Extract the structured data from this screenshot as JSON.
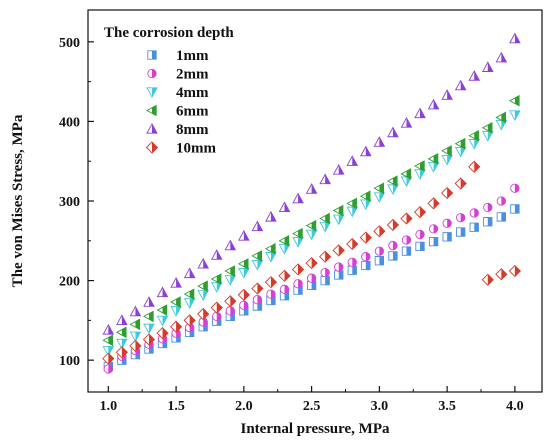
{
  "chart_data": {
    "type": "scatter",
    "xlabel": "Internal pressure, MPa",
    "ylabel": "The von Mises Stress, MPa",
    "xlim": [
      0.85,
      4.2
    ],
    "ylim": [
      60,
      540
    ],
    "x_ticks": [
      "1.0",
      "1.5",
      "2.0",
      "2.5",
      "3.0",
      "3.5",
      "4.0"
    ],
    "y_ticks": [
      "100",
      "200",
      "300",
      "400",
      "500"
    ],
    "legend": {
      "title": "The corrosion depth",
      "placement": "top-left"
    },
    "series": [
      {
        "name": "1mm",
        "marker": "square",
        "color": "#4a90e2",
        "x": [
          1.0,
          1.1,
          1.2,
          1.3,
          1.4,
          1.5,
          1.6,
          1.7,
          1.8,
          1.9,
          2.0,
          2.1,
          2.2,
          2.3,
          2.4,
          2.5,
          2.6,
          2.7,
          2.8,
          2.9,
          3.0,
          3.1,
          3.2,
          3.3,
          3.4,
          3.5,
          3.6,
          3.7,
          3.8,
          3.9,
          4.0
        ],
        "y": [
          92,
          100,
          107,
          114,
          121,
          128,
          135,
          142,
          149,
          155,
          162,
          168,
          175,
          181,
          188,
          194,
          200,
          207,
          213,
          219,
          225,
          231,
          237,
          243,
          249,
          255,
          261,
          267,
          274,
          280,
          290
        ]
      },
      {
        "name": "2mm",
        "marker": "circle",
        "color": "#d63fd6",
        "x": [
          1.0,
          1.1,
          1.2,
          1.3,
          1.4,
          1.5,
          1.6,
          1.7,
          1.8,
          1.9,
          2.0,
          2.1,
          2.2,
          2.3,
          2.4,
          2.5,
          2.6,
          2.7,
          2.8,
          2.9,
          3.0,
          3.1,
          3.2,
          3.3,
          3.4,
          3.5,
          3.6,
          3.7,
          3.8,
          3.9,
          4.0
        ],
        "y": [
          89,
          105,
          112,
          120,
          127,
          134,
          141,
          148,
          155,
          162,
          169,
          176,
          183,
          189,
          196,
          203,
          210,
          217,
          223,
          230,
          237,
          244,
          251,
          258,
          265,
          272,
          279,
          285,
          292,
          300,
          316
        ]
      },
      {
        "name": "4mm",
        "marker": "triangle-down",
        "color": "#3fc9e0",
        "x": [
          1.0,
          1.1,
          1.2,
          1.3,
          1.4,
          1.5,
          1.6,
          1.7,
          1.8,
          1.9,
          2.0,
          2.1,
          2.2,
          2.3,
          2.4,
          2.5,
          2.6,
          2.7,
          2.8,
          2.9,
          3.0,
          3.1,
          3.2,
          3.3,
          3.4,
          3.5,
          3.6,
          3.7,
          3.8,
          3.9,
          4.0
        ],
        "y": [
          112,
          121,
          130,
          140,
          150,
          162,
          172,
          182,
          192,
          201,
          210,
          220,
          230,
          240,
          249,
          258,
          268,
          277,
          287,
          296,
          305,
          315,
          325,
          334,
          343,
          352,
          362,
          372,
          382,
          396,
          408
        ]
      },
      {
        "name": "6mm",
        "marker": "triangle-left",
        "color": "#2e9e2e",
        "x": [
          1.0,
          1.1,
          1.2,
          1.3,
          1.4,
          1.5,
          1.6,
          1.7,
          1.8,
          1.9,
          2.0,
          2.1,
          2.2,
          2.3,
          2.4,
          2.5,
          2.6,
          2.7,
          2.8,
          2.9,
          3.0,
          3.1,
          3.2,
          3.3,
          3.4,
          3.5,
          3.6,
          3.7,
          3.8,
          3.9,
          4.0
        ],
        "y": [
          125,
          135,
          145,
          155,
          163,
          173,
          183,
          193,
          202,
          212,
          221,
          231,
          240,
          250,
          259,
          269,
          278,
          288,
          297,
          306,
          316,
          325,
          334,
          344,
          353,
          363,
          372,
          382,
          392,
          405,
          426
        ]
      },
      {
        "name": "8mm",
        "marker": "triangle-up",
        "color": "#8a3fd6",
        "x": [
          1.0,
          1.1,
          1.2,
          1.3,
          1.4,
          1.5,
          1.6,
          1.7,
          1.8,
          1.9,
          2.0,
          2.1,
          2.2,
          2.3,
          2.4,
          2.5,
          2.6,
          2.7,
          2.8,
          2.9,
          3.0,
          3.1,
          3.2,
          3.3,
          3.4,
          3.5,
          3.6,
          3.7,
          3.8,
          3.9,
          4.0
        ],
        "y": [
          138,
          150,
          161,
          173,
          185,
          197,
          209,
          221,
          232,
          244,
          256,
          268,
          280,
          292,
          303,
          315,
          327,
          339,
          350,
          362,
          374,
          386,
          398,
          410,
          421,
          433,
          445,
          457,
          468,
          480,
          504
        ]
      },
      {
        "name": "10mm",
        "marker": "diamond",
        "color": "#d63a2a",
        "x": [
          1.0,
          1.1,
          1.2,
          1.3,
          1.4,
          1.5,
          1.6,
          1.7,
          1.8,
          1.9,
          2.0,
          2.1,
          2.2,
          2.3,
          2.4,
          2.5,
          2.6,
          2.7,
          2.8,
          2.9,
          3.0,
          3.1,
          3.2,
          3.3,
          3.4,
          3.5,
          3.6,
          3.7,
          3.8,
          3.9,
          4.0
        ],
        "y": [
          102,
          110,
          118,
          126,
          134,
          142,
          150,
          158,
          166,
          174,
          182,
          190,
          198,
          206,
          214,
          222,
          230,
          238,
          246,
          254,
          262,
          270,
          278,
          286,
          297,
          310,
          322,
          343,
          201,
          208,
          212
        ]
      }
    ]
  }
}
